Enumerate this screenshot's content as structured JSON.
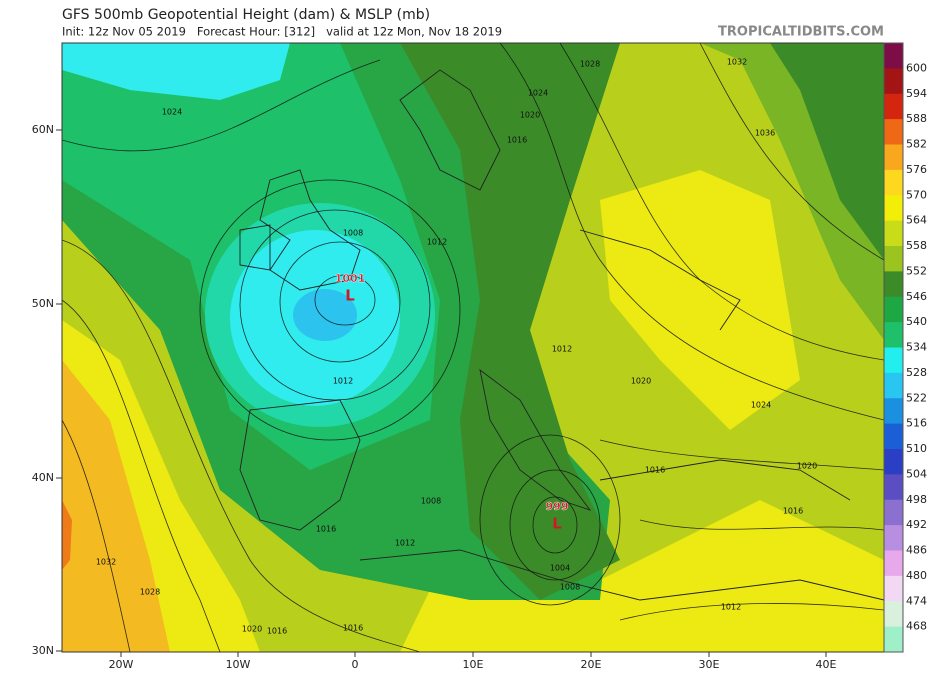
{
  "header": {
    "title": "GFS 500mb Geopotential Height (dam) & MSLP (mb)",
    "subtitle": "Init: 12z Nov 05 2019   Forecast Hour: [312]   valid at 12z Mon, Nov 18 2019",
    "site": "TROPICALTIDBITS.COM"
  },
  "map": {
    "lat_labels": [
      "60N",
      "50N",
      "40N",
      "30N"
    ],
    "lon_labels": [
      "20W",
      "10W",
      "0",
      "10E",
      "20E",
      "30E",
      "40E"
    ],
    "lows": [
      {
        "pressure": "1001",
        "symbol": "L"
      },
      {
        "pressure": "999",
        "symbol": "L"
      }
    ],
    "isobar_labels": [
      "1024",
      "1028",
      "1032",
      "1036",
      "1024",
      "1020",
      "1016",
      "1008",
      "1012",
      "1012",
      "1012",
      "1020",
      "1024",
      "1016",
      "1020",
      "1016",
      "1008",
      "1012",
      "1016",
      "1004",
      "1008",
      "1032",
      "1028",
      "1020",
      "1016",
      "1016",
      "1012"
    ]
  },
  "colorbar": {
    "labels": [
      "600",
      "594",
      "588",
      "582",
      "576",
      "570",
      "564",
      "558",
      "552",
      "546",
      "540",
      "534",
      "528",
      "522",
      "516",
      "510",
      "504",
      "498",
      "492",
      "486",
      "480",
      "474",
      "468"
    ]
  }
}
